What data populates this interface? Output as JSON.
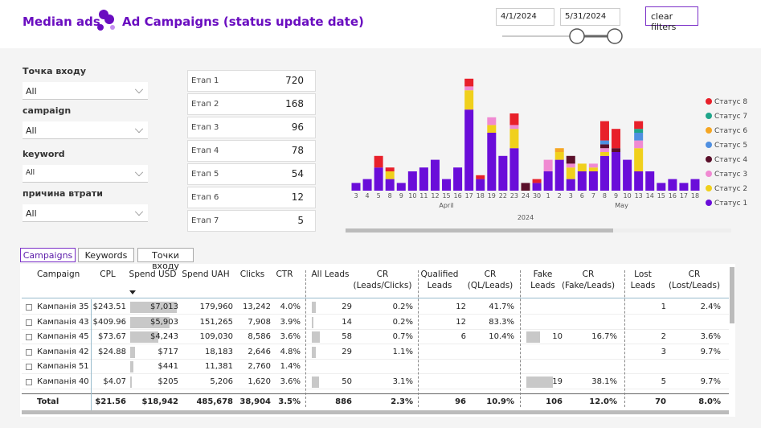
{
  "header": {
    "brand": "Median ads",
    "title": "Ad Campaigns (status update date)",
    "date_from": "4/1/2024",
    "date_to": "5/31/2024",
    "clear_filters": "clear filters"
  },
  "filters": [
    {
      "label": "Точка входу",
      "value": "All"
    },
    {
      "label": "campaign",
      "value": "All"
    },
    {
      "label": "keyword",
      "value": "All"
    },
    {
      "label": "причина втрати",
      "value": "All"
    }
  ],
  "stages": [
    {
      "label": "Етап 1",
      "value": 720
    },
    {
      "label": "Етап 2",
      "value": 168
    },
    {
      "label": "Етап 3",
      "value": 96
    },
    {
      "label": "Етап 4",
      "value": 78
    },
    {
      "label": "Етап 5",
      "value": 54
    },
    {
      "label": "Етап 6",
      "value": 12
    },
    {
      "label": "Етап 7",
      "value": 5
    }
  ],
  "chart_data": {
    "type": "stacked_bar",
    "categories": [
      "3",
      "4",
      "5",
      "8",
      "9",
      "10",
      "11",
      "12",
      "15",
      "16",
      "17",
      "18",
      "19",
      "22",
      "23",
      "24",
      "30",
      "1",
      "2",
      "3",
      "6",
      "7",
      "8",
      "9",
      "10",
      "13",
      "14",
      "15",
      "16",
      "17",
      "18"
    ],
    "month_labels": [
      "April",
      "May"
    ],
    "year_label": "2024",
    "legend": "right",
    "series": [
      {
        "name": "Статус 1",
        "color": "#6a0dd9",
        "values": [
          2,
          3,
          6,
          3,
          2,
          5,
          6,
          8,
          3,
          6,
          21,
          3,
          15,
          9,
          11,
          null,
          2,
          5,
          8,
          3,
          5,
          5,
          9,
          10,
          8,
          5,
          5,
          2,
          3,
          2,
          3
        ]
      },
      {
        "name": "Статус 2",
        "color": "#f0d01c",
        "values": [
          null,
          null,
          null,
          2,
          null,
          null,
          null,
          null,
          null,
          null,
          5,
          null,
          2,
          null,
          5,
          null,
          null,
          null,
          2,
          3,
          2,
          1,
          1,
          null,
          null,
          6,
          null,
          null,
          null,
          null,
          null
        ]
      },
      {
        "name": "Статус 3",
        "color": "#f08ad2",
        "values": [
          null,
          null,
          null,
          null,
          null,
          null,
          null,
          null,
          null,
          null,
          1,
          null,
          2,
          null,
          1,
          null,
          null,
          3,
          null,
          1,
          null,
          1,
          1,
          null,
          null,
          2,
          null,
          null,
          null,
          null,
          null
        ]
      },
      {
        "name": "Статус 4",
        "color": "#5a0f2a",
        "values": [
          null,
          null,
          null,
          null,
          null,
          null,
          null,
          null,
          null,
          null,
          null,
          null,
          null,
          null,
          null,
          2,
          null,
          null,
          null,
          2,
          null,
          null,
          1,
          1,
          null,
          null,
          null,
          null,
          null,
          null,
          null
        ]
      },
      {
        "name": "Статус 5",
        "color": "#4f8fe0",
        "values": [
          null,
          null,
          null,
          null,
          null,
          null,
          null,
          null,
          null,
          null,
          null,
          null,
          null,
          null,
          null,
          null,
          null,
          null,
          null,
          null,
          null,
          null,
          1,
          null,
          null,
          2,
          null,
          null,
          null,
          null,
          null
        ]
      },
      {
        "name": "Статус 6",
        "color": "#f5a623",
        "values": [
          null,
          null,
          null,
          null,
          null,
          null,
          null,
          null,
          null,
          null,
          null,
          null,
          null,
          null,
          null,
          null,
          null,
          null,
          1,
          null,
          null,
          null,
          null,
          null,
          null,
          null,
          null,
          null,
          null,
          null,
          null
        ]
      },
      {
        "name": "Статус 7",
        "color": "#1fa58a",
        "values": [
          null,
          null,
          null,
          null,
          null,
          null,
          null,
          null,
          null,
          null,
          null,
          null,
          null,
          null,
          null,
          null,
          null,
          null,
          null,
          null,
          null,
          null,
          null,
          null,
          null,
          1,
          null,
          null,
          null,
          null,
          null
        ]
      },
      {
        "name": "Статус 8",
        "color": "#e8202a",
        "values": [
          null,
          null,
          3,
          1,
          null,
          null,
          null,
          null,
          null,
          null,
          2,
          1,
          null,
          null,
          3,
          null,
          1,
          null,
          null,
          null,
          null,
          null,
          5,
          5,
          null,
          2,
          null,
          null,
          null,
          null,
          null
        ]
      }
    ]
  },
  "tabs": [
    "Campaigns",
    "Keywords",
    "Точки входу"
  ],
  "table": {
    "columns": [
      "Campaign",
      "CPL",
      "Spend USD",
      "Spend UAH",
      "Clicks",
      "CTR",
      "All Leads",
      "CR\n(Leads/Clicks)",
      "Qualified\nLeads",
      "CR\n(QL/Leads)",
      "Fake\nLeads",
      "CR\n(Fake/Leads)",
      "Lost\nLeads",
      "CR\n(Lost/Leads)"
    ],
    "rows": [
      [
        "Кампанія 35",
        "$243.51",
        "$7,013",
        "179,960",
        "13,242",
        "4.0%",
        "29",
        "0.2%",
        "12",
        "41.7%",
        null,
        null,
        "1",
        "2.4%"
      ],
      [
        "Кампанія 43",
        "$409.96",
        "$5,903",
        "151,265",
        "7,908",
        "3.9%",
        "14",
        "0.2%",
        "12",
        "83.3%",
        null,
        null,
        null,
        null
      ],
      [
        "Кампанія 45",
        "$73.67",
        "$4,243",
        "109,030",
        "8,586",
        "3.6%",
        "58",
        "0.7%",
        "6",
        "10.4%",
        "10",
        "16.7%",
        "2",
        "3.6%"
      ],
      [
        "Кампанія 42",
        "$24.88",
        "$717",
        "18,183",
        "2,646",
        "4.8%",
        "29",
        "1.1%",
        null,
        null,
        null,
        null,
        "3",
        "9.7%"
      ],
      [
        "Кампанія 51",
        null,
        "$441",
        "11,381",
        "2,760",
        "1.4%",
        null,
        null,
        null,
        null,
        null,
        null,
        null,
        null
      ],
      [
        "Кампанія 40",
        "$4.07",
        "$205",
        "5,206",
        "1,620",
        "3.6%",
        "50",
        "3.1%",
        null,
        null,
        "19",
        "38.1%",
        "5",
        "9.7%"
      ]
    ],
    "total": [
      "Total",
      "$21.56",
      "$18,942",
      "485,678",
      "38,904",
      "3.5%",
      "886",
      "2.3%",
      "96",
      "10.9%",
      "106",
      "12.0%",
      "70",
      "8.0%"
    ]
  }
}
